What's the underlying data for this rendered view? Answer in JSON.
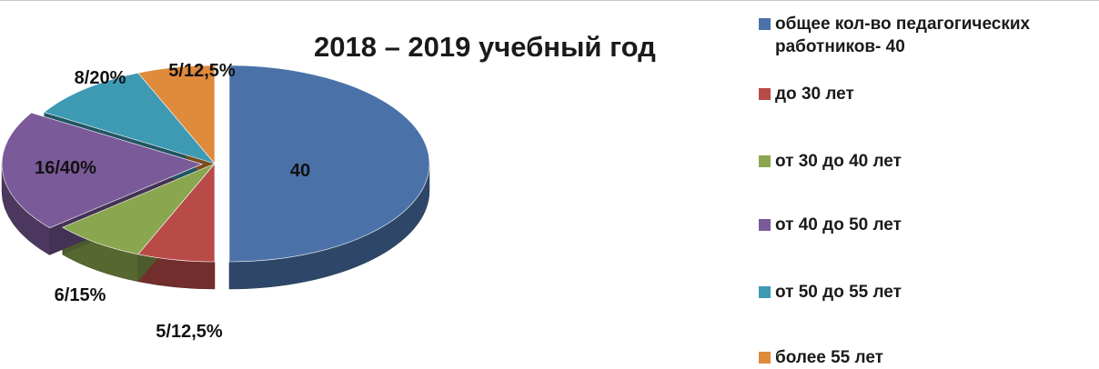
{
  "chart_data": {
    "type": "pie",
    "title": "2018 – 2019 учебный год",
    "slices": [
      {
        "label": "общее кол-во педагогических работников- 40",
        "value": 40,
        "data_label": "40",
        "color": "#4a72a8",
        "exploded": true
      },
      {
        "label": "до 30 лет",
        "value": 5,
        "data_label": "5/12,5%",
        "color": "#b84a47",
        "exploded": false
      },
      {
        "label": "от 30 до 40 лет",
        "value": 6,
        "data_label": "6/15%",
        "color": "#8aa64e",
        "exploded": false
      },
      {
        "label": "от 40 до 50 лет",
        "value": 16,
        "data_label": "16/40%",
        "color": "#7a5a98",
        "exploded": true
      },
      {
        "label": "от 50 до 55 лет",
        "value": 8,
        "data_label": "8/20%",
        "color": "#3e9ab3",
        "exploded": false
      },
      {
        "label": "более 55 лет",
        "value": 5,
        "data_label": "5/12,5%",
        "color": "#e08a3c",
        "exploded": false
      }
    ],
    "legend_position": "right",
    "style": "3d"
  }
}
